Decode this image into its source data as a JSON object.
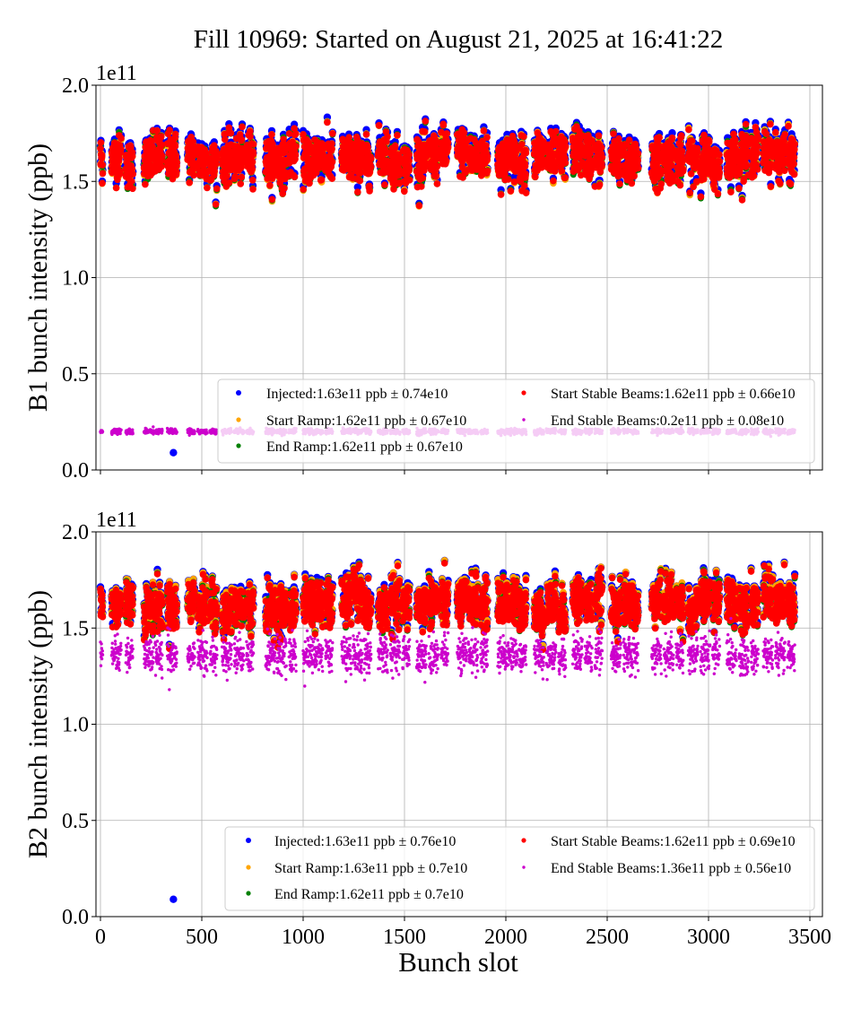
{
  "chart_data": {
    "title": "Fill 10969: Started on August 21, 2025 at 16:41:22",
    "xlabel": "Bunch slot",
    "xlim": [
      -20,
      3560
    ],
    "xticks": [
      "0",
      "500",
      "1000",
      "1500",
      "2000",
      "2500",
      "3000",
      "3500"
    ],
    "xtick_values": [
      0,
      500,
      1000,
      1500,
      2000,
      2500,
      3000,
      3500
    ],
    "grid": true,
    "trains": [
      [
        0,
        12
      ],
      [
        55,
        48
      ],
      [
        125,
        36
      ],
      [
        215,
        48
      ],
      [
        270,
        36
      ],
      [
        330,
        48
      ],
      [
        430,
        36
      ],
      [
        480,
        48
      ],
      [
        540,
        36
      ],
      [
        600,
        48
      ],
      [
        660,
        48
      ],
      [
        720,
        36
      ],
      [
        815,
        48
      ],
      [
        870,
        48
      ],
      [
        930,
        36
      ],
      [
        1000,
        48
      ],
      [
        1050,
        48
      ],
      [
        1110,
        36
      ],
      [
        1190,
        48
      ],
      [
        1245,
        48
      ],
      [
        1300,
        36
      ],
      [
        1370,
        48
      ],
      [
        1430,
        48
      ],
      [
        1490,
        36
      ],
      [
        1560,
        48
      ],
      [
        1620,
        48
      ],
      [
        1680,
        36
      ],
      [
        1760,
        48
      ],
      [
        1815,
        48
      ],
      [
        1875,
        36
      ],
      [
        1960,
        48
      ],
      [
        2010,
        48
      ],
      [
        2065,
        36
      ],
      [
        2140,
        48
      ],
      [
        2200,
        48
      ],
      [
        2260,
        36
      ],
      [
        2330,
        48
      ],
      [
        2390,
        36
      ],
      [
        2440,
        36
      ],
      [
        2520,
        48
      ],
      [
        2580,
        48
      ],
      [
        2630,
        24
      ],
      [
        2720,
        48
      ],
      [
        2780,
        48
      ],
      [
        2840,
        36
      ],
      [
        2900,
        48
      ],
      [
        2960,
        48
      ],
      [
        3020,
        36
      ],
      [
        3090,
        48
      ],
      [
        3150,
        48
      ],
      [
        3210,
        36
      ],
      [
        3270,
        48
      ],
      [
        3330,
        48
      ],
      [
        3390,
        36
      ]
    ],
    "panels": [
      {
        "type": "scatter",
        "ylabel": "B1 bunch intensity (ppb)",
        "offset_label": "1e11",
        "ylim": [
          0,
          2.0
        ],
        "yticks": [
          "0.0",
          "0.5",
          "1.0",
          "1.5",
          "2.0"
        ],
        "ytick_values": [
          0,
          0.5,
          1.0,
          1.5,
          2.0
        ],
        "legend_placement": "lower-right",
        "series": [
          {
            "name": "Injected:1.63e11 ppb ± 0.74e10",
            "mean": 1.63,
            "std": 0.074,
            "color": "#0000ff"
          },
          {
            "name": "Start Ramp:1.62e11 ppb ± 0.67e10",
            "mean": 1.62,
            "std": 0.067,
            "color": "#ffa500"
          },
          {
            "name": "End Ramp:1.62e11 ppb ± 0.67e10",
            "mean": 1.62,
            "std": 0.067,
            "color": "#008000"
          },
          {
            "name": "Start Stable Beams:1.62e11 ppb ± 0.66e10",
            "mean": 1.62,
            "std": 0.066,
            "color": "#ff0000"
          },
          {
            "name": "End Stable Beams:0.2e11 ppb ± 0.08e10",
            "mean": 0.2,
            "std": 0.008,
            "color": "#cc00cc"
          }
        ],
        "outliers": [
          {
            "series": 0,
            "x": 360,
            "y": 0.09
          }
        ]
      },
      {
        "type": "scatter",
        "ylabel": "B2 bunch intensity (ppb)",
        "offset_label": "1e11",
        "ylim": [
          0,
          2.0
        ],
        "yticks": [
          "0.0",
          "0.5",
          "1.0",
          "1.5",
          "2.0"
        ],
        "ytick_values": [
          0,
          0.5,
          1.0,
          1.5,
          2.0
        ],
        "legend_placement": "lower-right",
        "series": [
          {
            "name": "Injected:1.63e11 ppb ± 0.76e10",
            "mean": 1.63,
            "std": 0.076,
            "color": "#0000ff"
          },
          {
            "name": "Start Ramp:1.63e11 ppb ± 0.7e10",
            "mean": 1.63,
            "std": 0.07,
            "color": "#ffa500"
          },
          {
            "name": "End Ramp:1.62e11 ppb ± 0.7e10",
            "mean": 1.62,
            "std": 0.07,
            "color": "#008000"
          },
          {
            "name": "Start Stable Beams:1.62e11 ppb ± 0.69e10",
            "mean": 1.62,
            "std": 0.069,
            "color": "#ff0000"
          },
          {
            "name": "End Stable Beams:1.36e11 ppb ± 0.56e10",
            "mean": 1.36,
            "std": 0.056,
            "color": "#cc00cc"
          }
        ],
        "outliers": [
          {
            "series": 0,
            "x": 360,
            "y": 0.09
          }
        ]
      }
    ]
  }
}
